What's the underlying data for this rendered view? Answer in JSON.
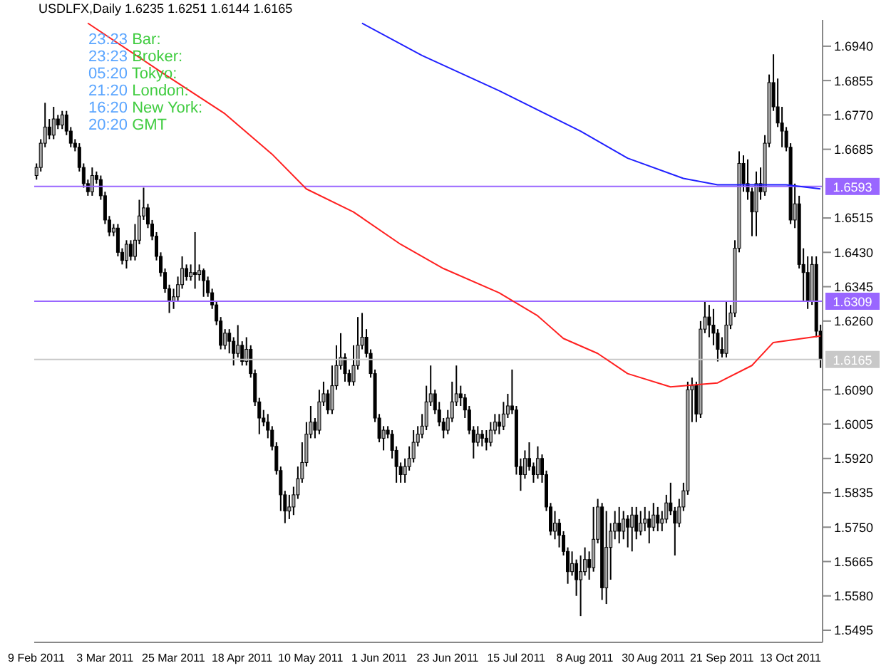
{
  "chart_data": {
    "type": "candlestick",
    "title": "USDLFX,Daily 1.6235 1.6251 1.6144 1.6165",
    "annotations": [
      "23:23 Bar:",
      "23:23 Broker:",
      "05:20 Tokyo:",
      "21:20 London:",
      "16:20 New York:",
      "20:20 GMT"
    ],
    "categories": [
      "9 Feb 2011",
      null,
      null,
      null,
      null,
      null,
      null,
      null,
      null,
      null,
      null,
      null,
      null,
      null,
      null,
      null,
      "3 Mar 2011",
      null,
      null,
      null,
      null,
      null,
      null,
      null,
      null,
      null,
      null,
      null,
      null,
      null,
      null,
      null,
      "25 Mar 2011",
      null,
      null,
      null,
      null,
      null,
      null,
      null,
      null,
      null,
      null,
      null,
      null,
      null,
      null,
      null,
      "18 Apr 2011",
      null,
      null,
      null,
      null,
      null,
      null,
      null,
      null,
      null,
      null,
      null,
      null,
      null,
      null,
      null,
      "10 May 2011",
      null,
      null,
      null,
      null,
      null,
      null,
      null,
      null,
      null,
      null,
      null,
      null,
      null,
      null,
      null,
      "1 Jun 2011",
      null,
      null,
      null,
      null,
      null,
      null,
      null,
      null,
      null,
      null,
      null,
      null,
      null,
      null,
      null,
      "23 Jun 2011",
      null,
      null,
      null,
      null,
      null,
      null,
      null,
      null,
      null,
      null,
      null,
      null,
      null,
      null,
      null,
      "15 Jul 2011",
      null,
      null,
      null,
      null,
      null,
      null,
      null,
      null,
      null,
      null,
      null,
      null,
      null,
      null,
      null,
      "8 Aug 2011",
      null,
      null,
      null,
      null,
      null,
      null,
      null,
      null,
      null,
      null,
      null,
      null,
      null,
      null,
      null,
      "30 Aug 2011",
      null,
      null,
      null,
      null,
      null,
      null,
      null,
      null,
      null,
      null,
      null,
      null,
      null,
      null,
      null,
      "21 Sep 2011",
      null,
      null,
      null,
      null,
      null,
      null,
      null,
      null,
      null,
      null,
      null,
      null,
      null,
      null,
      null,
      "13 Oct 2011",
      null,
      null,
      null,
      null,
      null,
      null,
      null
    ],
    "ohlc": [
      [
        1.662,
        1.665,
        1.661,
        1.664
      ],
      [
        1.664,
        1.671,
        1.663,
        1.67
      ],
      [
        1.67,
        1.68,
        1.669,
        1.674
      ],
      [
        1.674,
        1.676,
        1.671,
        1.672
      ],
      [
        1.672,
        1.679,
        1.671,
        1.676
      ],
      [
        1.676,
        1.677,
        1.6735,
        1.6745
      ],
      [
        1.6745,
        1.678,
        1.6735,
        1.677
      ],
      [
        1.677,
        1.678,
        1.672,
        1.673
      ],
      [
        1.673,
        1.674,
        1.669,
        1.67
      ],
      [
        1.67,
        1.671,
        1.668,
        1.669
      ],
      [
        1.669,
        1.67,
        1.663,
        1.664
      ],
      [
        1.664,
        1.665,
        1.659,
        1.66
      ],
      [
        1.66,
        1.661,
        1.657,
        1.658
      ],
      [
        1.658,
        1.664,
        1.657,
        1.662
      ],
      [
        1.662,
        1.663,
        1.66,
        1.661
      ],
      [
        1.661,
        1.662,
        1.656,
        1.657
      ],
      [
        1.657,
        1.658,
        1.65,
        1.651
      ],
      [
        1.651,
        1.652,
        1.647,
        1.648
      ],
      [
        1.648,
        1.65,
        1.647,
        1.649
      ],
      [
        1.649,
        1.65,
        1.642,
        1.643
      ],
      [
        1.643,
        1.644,
        1.64,
        1.641
      ],
      [
        1.641,
        1.646,
        1.639,
        1.645
      ],
      [
        1.645,
        1.646,
        1.641,
        1.642
      ],
      [
        1.642,
        1.65,
        1.641,
        1.646
      ],
      [
        1.646,
        1.656,
        1.645,
        1.652
      ],
      [
        1.652,
        1.659,
        1.651,
        1.654
      ],
      [
        1.654,
        1.655,
        1.649,
        1.65
      ],
      [
        1.65,
        1.651,
        1.646,
        1.647
      ],
      [
        1.647,
        1.648,
        1.641,
        1.642
      ],
      [
        1.642,
        1.643,
        1.637,
        1.638
      ],
      [
        1.638,
        1.639,
        1.633,
        1.634
      ],
      [
        1.634,
        1.635,
        1.628,
        1.631
      ],
      [
        1.631,
        1.634,
        1.629,
        1.632
      ],
      [
        1.632,
        1.637,
        1.631,
        1.635
      ],
      [
        1.635,
        1.642,
        1.634,
        1.639
      ],
      [
        1.639,
        1.64,
        1.636,
        1.637
      ],
      [
        1.637,
        1.64,
        1.636,
        1.638
      ],
      [
        1.638,
        1.648,
        1.634,
        1.6375
      ],
      [
        1.6375,
        1.64,
        1.636,
        1.6385
      ],
      [
        1.6385,
        1.639,
        1.632,
        1.636
      ],
      [
        1.636,
        1.637,
        1.632,
        1.633
      ],
      [
        1.633,
        1.634,
        1.629,
        1.63
      ],
      [
        1.63,
        1.631,
        1.625,
        1.626
      ],
      [
        1.626,
        1.627,
        1.619,
        1.62
      ],
      [
        1.62,
        1.624,
        1.619,
        1.623
      ],
      [
        1.623,
        1.624,
        1.618,
        1.621
      ],
      [
        1.621,
        1.622,
        1.615,
        1.618
      ],
      [
        1.618,
        1.625,
        1.617,
        1.62
      ],
      [
        1.62,
        1.621,
        1.615,
        1.616
      ],
      [
        1.616,
        1.622,
        1.615,
        1.619
      ],
      [
        1.619,
        1.62,
        1.612,
        1.613
      ],
      [
        1.613,
        1.614,
        1.605,
        1.606
      ],
      [
        1.606,
        1.607,
        1.598,
        1.602
      ],
      [
        1.602,
        1.604,
        1.6,
        1.601
      ],
      [
        1.601,
        1.603,
        1.597,
        1.599
      ],
      [
        1.599,
        1.6,
        1.594,
        1.595
      ],
      [
        1.595,
        1.596,
        1.588,
        1.589
      ],
      [
        1.589,
        1.59,
        1.579,
        1.583
      ],
      [
        1.583,
        1.584,
        1.576,
        1.579
      ],
      [
        1.579,
        1.583,
        1.577,
        1.58
      ],
      [
        1.58,
        1.585,
        1.578,
        1.583
      ],
      [
        1.583,
        1.59,
        1.582,
        1.587
      ],
      [
        1.587,
        1.596,
        1.586,
        1.591
      ],
      [
        1.591,
        1.601,
        1.59,
        1.598
      ],
      [
        1.598,
        1.605,
        1.597,
        1.601
      ],
      [
        1.601,
        1.602,
        1.597,
        1.599
      ],
      [
        1.599,
        1.609,
        1.598,
        1.606
      ],
      [
        1.606,
        1.611,
        1.605,
        1.608
      ],
      [
        1.608,
        1.609,
        1.603,
        1.604
      ],
      [
        1.604,
        1.615,
        1.603,
        1.61
      ],
      [
        1.61,
        1.62,
        1.609,
        1.615
      ],
      [
        1.615,
        1.623,
        1.614,
        1.617
      ],
      [
        1.617,
        1.618,
        1.611,
        1.613
      ],
      [
        1.613,
        1.614,
        1.61,
        1.611
      ],
      [
        1.611,
        1.62,
        1.61,
        1.615
      ],
      [
        1.615,
        1.627,
        1.614,
        1.62
      ],
      [
        1.62,
        1.628,
        1.619,
        1.622
      ],
      [
        1.622,
        1.624,
        1.617,
        1.618
      ],
      [
        1.618,
        1.619,
        1.612,
        1.613
      ],
      [
        1.613,
        1.614,
        1.601,
        1.602
      ],
      [
        1.602,
        1.603,
        1.596,
        1.597
      ],
      [
        1.597,
        1.6,
        1.594,
        1.599
      ],
      [
        1.599,
        1.6,
        1.597,
        1.598
      ],
      [
        1.598,
        1.599,
        1.592,
        1.594
      ],
      [
        1.594,
        1.595,
        1.586,
        1.59
      ],
      [
        1.59,
        1.591,
        1.586,
        1.588
      ],
      [
        1.588,
        1.592,
        1.586,
        1.59
      ],
      [
        1.59,
        1.595,
        1.589,
        1.592
      ],
      [
        1.592,
        1.599,
        1.591,
        1.596
      ],
      [
        1.596,
        1.6,
        1.595,
        1.598
      ],
      [
        1.598,
        1.603,
        1.597,
        1.6
      ],
      [
        1.6,
        1.61,
        1.599,
        1.606
      ],
      [
        1.606,
        1.615,
        1.605,
        1.608
      ],
      [
        1.608,
        1.609,
        1.603,
        1.604
      ],
      [
        1.604,
        1.606,
        1.6,
        1.601
      ],
      [
        1.601,
        1.602,
        1.597,
        1.599
      ],
      [
        1.599,
        1.604,
        1.598,
        1.602
      ],
      [
        1.602,
        1.611,
        1.601,
        1.606
      ],
      [
        1.606,
        1.615,
        1.605,
        1.608
      ],
      [
        1.608,
        1.61,
        1.605,
        1.607
      ],
      [
        1.607,
        1.608,
        1.602,
        1.604
      ],
      [
        1.604,
        1.605,
        1.598,
        1.599
      ],
      [
        1.599,
        1.6,
        1.592,
        1.596
      ],
      [
        1.596,
        1.6,
        1.595,
        1.598
      ],
      [
        1.598,
        1.599,
        1.595,
        1.597
      ],
      [
        1.597,
        1.599,
        1.594,
        1.596
      ],
      [
        1.596,
        1.601,
        1.595,
        1.599
      ],
      [
        1.599,
        1.603,
        1.598,
        1.601
      ],
      [
        1.601,
        1.603,
        1.598,
        1.6
      ],
      [
        1.6,
        1.606,
        1.599,
        1.603
      ],
      [
        1.603,
        1.608,
        1.602,
        1.605
      ],
      [
        1.605,
        1.614,
        1.603,
        1.604
      ],
      [
        1.604,
        1.605,
        1.588,
        1.59
      ],
      [
        1.59,
        1.592,
        1.584,
        1.588
      ],
      [
        1.588,
        1.594,
        1.587,
        1.592
      ],
      [
        1.592,
        1.596,
        1.589,
        1.59
      ],
      [
        1.59,
        1.591,
        1.586,
        1.588
      ],
      [
        1.588,
        1.595,
        1.587,
        1.592
      ],
      [
        1.592,
        1.593,
        1.586,
        1.588
      ],
      [
        1.588,
        1.589,
        1.579,
        1.58
      ],
      [
        1.58,
        1.581,
        1.573,
        1.574
      ],
      [
        1.574,
        1.579,
        1.572,
        1.576
      ],
      [
        1.576,
        1.577,
        1.57,
        1.573
      ],
      [
        1.573,
        1.574,
        1.568,
        1.569
      ],
      [
        1.569,
        1.57,
        1.561,
        1.564
      ],
      [
        1.564,
        1.569,
        1.563,
        1.566
      ],
      [
        1.566,
        1.567,
        1.558,
        1.562
      ],
      [
        1.562,
        1.568,
        1.553,
        1.564
      ],
      [
        1.564,
        1.57,
        1.563,
        1.567
      ],
      [
        1.567,
        1.569,
        1.562,
        1.565
      ],
      [
        1.565,
        1.58,
        1.564,
        1.572
      ],
      [
        1.572,
        1.582,
        1.571,
        1.58
      ],
      [
        1.58,
        1.581,
        1.557,
        1.56
      ],
      [
        1.56,
        1.579,
        1.556,
        1.57
      ],
      [
        1.57,
        1.576,
        1.562,
        1.574
      ],
      [
        1.574,
        1.579,
        1.572,
        1.576
      ],
      [
        1.576,
        1.58,
        1.571,
        1.574
      ],
      [
        1.574,
        1.579,
        1.572,
        1.577
      ],
      [
        1.577,
        1.578,
        1.57,
        1.575
      ],
      [
        1.575,
        1.58,
        1.569,
        1.578
      ],
      [
        1.578,
        1.58,
        1.572,
        1.574
      ],
      [
        1.574,
        1.579,
        1.573,
        1.576
      ],
      [
        1.576,
        1.58,
        1.574,
        1.577
      ],
      [
        1.577,
        1.579,
        1.571,
        1.575
      ],
      [
        1.575,
        1.581,
        1.574,
        1.578
      ],
      [
        1.578,
        1.58,
        1.574,
        1.576
      ],
      [
        1.576,
        1.579,
        1.574,
        1.577
      ],
      [
        1.577,
        1.583,
        1.576,
        1.581
      ],
      [
        1.581,
        1.586,
        1.578,
        1.579
      ],
      [
        1.579,
        1.58,
        1.568,
        1.576
      ],
      [
        1.576,
        1.582,
        1.575,
        1.58
      ],
      [
        1.58,
        1.586,
        1.579,
        1.584
      ],
      [
        1.584,
        1.611,
        1.583,
        1.609
      ],
      [
        1.609,
        1.612,
        1.601,
        1.61
      ],
      [
        1.61,
        1.611,
        1.601,
        1.603
      ],
      [
        1.603,
        1.626,
        1.602,
        1.624
      ],
      [
        1.624,
        1.631,
        1.623,
        1.627
      ],
      [
        1.627,
        1.63,
        1.622,
        1.625
      ],
      [
        1.625,
        1.629,
        1.62,
        1.623
      ],
      [
        1.623,
        1.624,
        1.616,
        1.619
      ],
      [
        1.619,
        1.622,
        1.617,
        1.618
      ],
      [
        1.618,
        1.631,
        1.617,
        1.625
      ],
      [
        1.625,
        1.63,
        1.624,
        1.628
      ],
      [
        1.628,
        1.646,
        1.627,
        1.644
      ],
      [
        1.644,
        1.668,
        1.643,
        1.665
      ],
      [
        1.665,
        1.667,
        1.658,
        1.66
      ],
      [
        1.66,
        1.666,
        1.656,
        1.658
      ],
      [
        1.658,
        1.659,
        1.647,
        1.653
      ],
      [
        1.653,
        1.663,
        1.647,
        1.66
      ],
      [
        1.66,
        1.664,
        1.656,
        1.658
      ],
      [
        1.658,
        1.672,
        1.657,
        1.67
      ],
      [
        1.67,
        1.687,
        1.669,
        1.685
      ],
      [
        1.685,
        1.692,
        1.678,
        1.679
      ],
      [
        1.679,
        1.686,
        1.674,
        1.675
      ],
      [
        1.675,
        1.679,
        1.669,
        1.673
      ],
      [
        1.673,
        1.674,
        1.668,
        1.669
      ],
      [
        1.669,
        1.67,
        1.65,
        1.651
      ],
      [
        1.651,
        1.66,
        1.649,
        1.655
      ],
      [
        1.655,
        1.657,
        1.639,
        1.64
      ],
      [
        1.64,
        1.644,
        1.631,
        1.638
      ],
      [
        1.638,
        1.642,
        1.629,
        1.631
      ],
      [
        1.631,
        1.642,
        1.63,
        1.64
      ],
      [
        1.64,
        1.642,
        1.622,
        1.6235
      ],
      [
        1.6235,
        1.6251,
        1.6144,
        1.6165
      ]
    ],
    "series": [
      {
        "type": "line",
        "color": "#ff2020",
        "values": [
          null,
          null,
          null,
          null,
          null,
          null,
          null,
          null,
          null,
          null,
          null,
          null,
          1.6997,
          null,
          null,
          null,
          null,
          null,
          null,
          null,
          null,
          null,
          null,
          null,
          null,
          null,
          null,
          null,
          null,
          null,
          null,
          1.6863,
          null,
          null,
          null,
          null,
          null,
          null,
          null,
          null,
          null,
          null,
          null,
          null,
          1.6773,
          null,
          null,
          null,
          null,
          null,
          null,
          null,
          null,
          null,
          null,
          1.6673,
          null,
          null,
          null,
          null,
          null,
          null,
          null,
          1.6587,
          null,
          null,
          null,
          null,
          null,
          null,
          null,
          null,
          null,
          null,
          1.653,
          null,
          null,
          null,
          null,
          null,
          null,
          null,
          null,
          null,
          null,
          1.645,
          null,
          null,
          null,
          null,
          null,
          null,
          null,
          null,
          null,
          1.639,
          null,
          null,
          null,
          null,
          null,
          null,
          null,
          null,
          null,
          null,
          null,
          null,
          1.633,
          null,
          null,
          null,
          null,
          null,
          null,
          null,
          null,
          1.6273,
          null,
          null,
          null,
          null,
          null,
          1.6217,
          null,
          null,
          null,
          null,
          null,
          null,
          null,
          1.618,
          null,
          null,
          null,
          null,
          null,
          null,
          1.613,
          null,
          null,
          null,
          null,
          null,
          null,
          null,
          null,
          null,
          1.6097,
          null,
          null,
          null,
          null,
          null,
          null,
          null,
          null,
          null,
          null,
          1.6107,
          null,
          null,
          null,
          null,
          null,
          null,
          null,
          1.615,
          null,
          null,
          null,
          null,
          1.6207,
          null,
          null,
          null,
          null,
          null,
          null,
          null,
          null,
          null,
          null,
          1.6223
        ]
      },
      {
        "type": "line",
        "color": "#2020ff",
        "values": [
          null,
          null,
          null,
          null,
          null,
          null,
          null,
          null,
          null,
          null,
          null,
          null,
          null,
          null,
          null,
          null,
          null,
          null,
          null,
          null,
          null,
          null,
          null,
          null,
          null,
          null,
          null,
          null,
          null,
          null,
          null,
          null,
          null,
          null,
          null,
          null,
          null,
          null,
          null,
          null,
          null,
          null,
          null,
          null,
          null,
          null,
          null,
          null,
          null,
          null,
          null,
          null,
          null,
          null,
          null,
          null,
          null,
          null,
          null,
          null,
          null,
          null,
          null,
          null,
          null,
          null,
          null,
          null,
          null,
          null,
          null,
          null,
          null,
          null,
          null,
          null,
          1.6997,
          null,
          null,
          null,
          null,
          null,
          null,
          null,
          null,
          null,
          null,
          null,
          null,
          null,
          1.6917,
          null,
          null,
          null,
          null,
          null,
          null,
          null,
          null,
          null,
          null,
          null,
          null,
          null,
          null,
          null,
          null,
          null,
          1.683,
          null,
          null,
          null,
          null,
          null,
          null,
          null,
          null,
          null,
          null,
          null,
          null,
          null,
          null,
          null,
          null,
          null,
          null,
          1.673,
          null,
          null,
          null,
          null,
          null,
          null,
          null,
          null,
          null,
          null,
          1.6663,
          null,
          null,
          null,
          null,
          null,
          null,
          null,
          null,
          null,
          null,
          null,
          null,
          1.6613,
          null,
          null,
          null,
          null,
          null,
          null,
          null,
          1.6597,
          null,
          null,
          null,
          null,
          null,
          null,
          null,
          null,
          null,
          null,
          null,
          null,
          null,
          null,
          null,
          1.6597,
          null,
          null,
          null,
          null,
          null,
          null,
          null,
          1.6587
        ]
      }
    ],
    "ylim": [
      1.5465,
      1.7005
    ],
    "yticks": [
      1.5495,
      {
        "value": 1.558,
        "label": "1.5580"
      },
      1.5665,
      {
        "value": 1.575,
        "label": "1.5750"
      },
      1.5835,
      {
        "value": 1.592,
        "label": "1.5920"
      },
      1.6005,
      {
        "value": 1.609,
        "label": "1.6090"
      },
      {
        "value": 1.626,
        "label": "1.6260"
      },
      1.6345,
      {
        "value": 1.643,
        "label": "1.6430"
      },
      1.6515,
      1.6685,
      {
        "value": 1.677,
        "label": "1.6770"
      },
      1.6855,
      {
        "value": 1.694,
        "label": "1.6940"
      }
    ],
    "ref_lines": [
      {
        "axis": "y",
        "value": 1.6593,
        "label": "1.6593",
        "color": "#9966ff"
      },
      {
        "axis": "y",
        "value": 1.6309,
        "label": "1.6309",
        "color": "#9966ff"
      },
      {
        "axis": "y",
        "value": 1.6165,
        "label": "1.6165",
        "color": "#c8c8c8"
      }
    ]
  }
}
